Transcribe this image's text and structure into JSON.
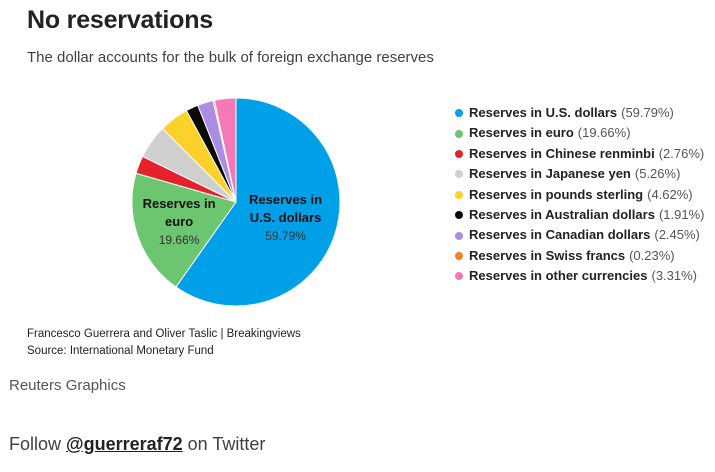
{
  "header": {
    "title": "No reservations",
    "subtitle": "The dollar accounts for the bulk of foreign exchange reserves"
  },
  "chart_data": {
    "type": "pie",
    "unit": "%",
    "slices": [
      {
        "name": "Reserves in U.S. dollars",
        "value": 59.79,
        "label": "59.79%",
        "color": "#00a0e9"
      },
      {
        "name": "Reserves in euro",
        "value": 19.66,
        "label": "19.66%",
        "color": "#6cc56f"
      },
      {
        "name": "Reserves in Chinese renminbi",
        "value": 2.76,
        "label": "2.76%",
        "color": "#e5222c"
      },
      {
        "name": "Reserves in Japanese yen",
        "value": 5.26,
        "label": "5.26%",
        "color": "#cfcfcf"
      },
      {
        "name": "Reserves in pounds sterling",
        "value": 4.62,
        "label": "4.62%",
        "color": "#fcd12a"
      },
      {
        "name": "Reserves in Australian dollars",
        "value": 1.91,
        "label": "1.91%",
        "color": "#0a0a0a"
      },
      {
        "name": "Reserves in Canadian dollars",
        "value": 2.45,
        "label": "2.45%",
        "color": "#a98ee3"
      },
      {
        "name": "Reserves in Swiss francs",
        "value": 0.23,
        "label": "0.23%",
        "color": "#f58020"
      },
      {
        "name": "Reserves in other currencies",
        "value": 3.31,
        "label": "3.31%",
        "color": "#f479b6"
      }
    ],
    "slice_labels": [
      {
        "index": 0,
        "lines": [
          "Reserves in",
          "U.S. dollars"
        ],
        "value": "59.79%"
      },
      {
        "index": 1,
        "lines": [
          "Reserves in",
          "euro"
        ],
        "value": "19.66%"
      }
    ],
    "legend_position": "right"
  },
  "footer": {
    "credit": "Francesco Guerrera and Oliver Taslic | Breakingviews",
    "source": "Source: International Monetary Fund",
    "brand": "Reuters Graphics",
    "follow_prefix": "Follow",
    "follow_handle": "@guerreraf72",
    "follow_suffix": "on Twitter"
  }
}
